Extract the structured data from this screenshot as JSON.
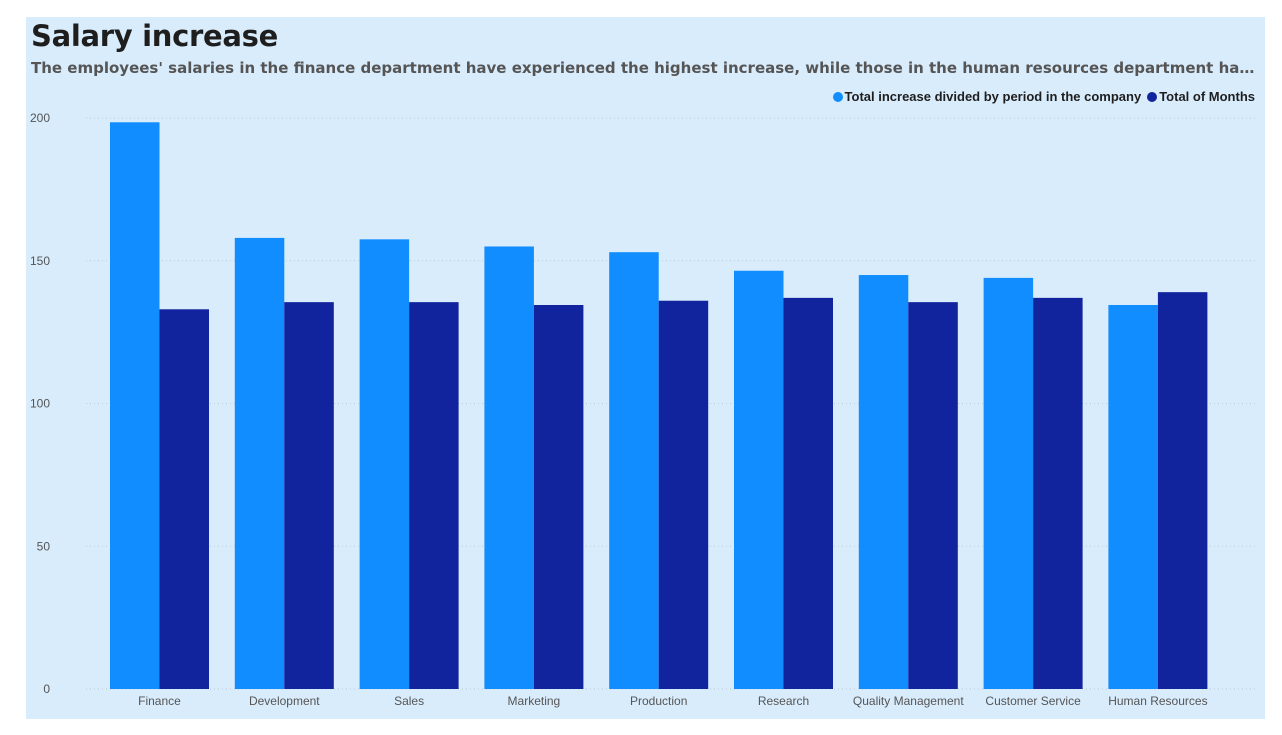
{
  "chart_data": {
    "type": "bar",
    "title": "Salary increase",
    "subtitle": "The employees' salaries in the finance department have experienced the highest increase, while those in the human resources department have had the lowest salary increase.",
    "xlabel": "",
    "ylabel": "",
    "ylim": [
      0,
      200
    ],
    "yticks": [
      0,
      50,
      100,
      150,
      200
    ],
    "grid": true,
    "legend_position": "top-right",
    "categories": [
      "Finance",
      "Development",
      "Sales",
      "Marketing",
      "Production",
      "Research",
      "Quality Management",
      "Customer Service",
      "Human Resources"
    ],
    "series": [
      {
        "name": "Total increase divided by period in the company",
        "color": "#118dff",
        "values": [
          198.5,
          158,
          157.5,
          155,
          153,
          146.5,
          145,
          144,
          134.5
        ]
      },
      {
        "name": "Total of Months",
        "color": "#12239e",
        "values": [
          133,
          135.5,
          135.5,
          134.5,
          136,
          137,
          135.5,
          137,
          139
        ]
      }
    ]
  }
}
